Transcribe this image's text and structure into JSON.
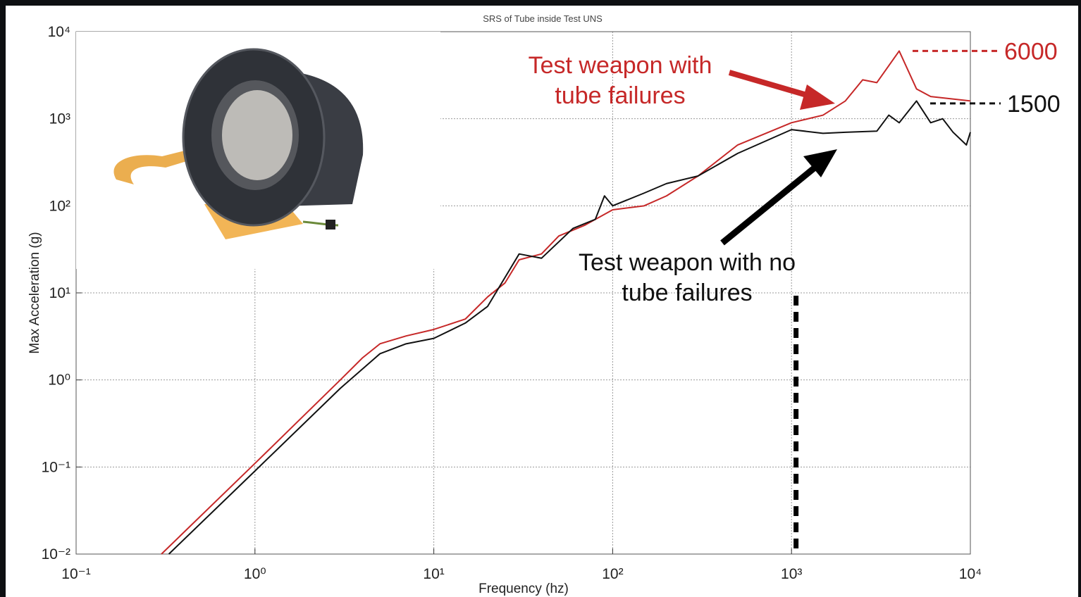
{
  "chart_data": {
    "type": "line",
    "title": "SRS of Tube inside Test UNS",
    "x_label": "Frequency (hz)",
    "y_label": "Max Acceleration (g)",
    "log_x": true,
    "log_y": true,
    "grid": true,
    "xlim": [
      0.1,
      10000
    ],
    "ylim": [
      0.01,
      10000
    ],
    "xticks": [
      {
        "value": 0.1,
        "label": "10⁻¹"
      },
      {
        "value": 1,
        "label": "10⁰"
      },
      {
        "value": 10,
        "label": "10¹"
      },
      {
        "value": 100,
        "label": "10²"
      },
      {
        "value": 1000,
        "label": "10³"
      },
      {
        "value": 10000,
        "label": "10⁴"
      }
    ],
    "yticks": [
      {
        "value": 0.01,
        "label": "10⁻²"
      },
      {
        "value": 0.1,
        "label": "10⁻¹"
      },
      {
        "value": 1,
        "label": "10⁰"
      },
      {
        "value": 10,
        "label": "10¹"
      },
      {
        "value": 100,
        "label": "10²"
      },
      {
        "value": 1000,
        "label": "10³"
      },
      {
        "value": 10000,
        "label": "10⁴"
      }
    ],
    "series": [
      {
        "name": "Test weapon with tube failures",
        "color": "#c62828",
        "x": [
          0.3,
          1,
          3,
          4,
          5,
          7,
          10,
          15,
          20,
          25,
          30,
          40,
          50,
          70,
          100,
          150,
          200,
          300,
          500,
          1000,
          1500,
          2000,
          2500,
          3000,
          4000,
          5000,
          6000,
          10000
        ],
        "values": [
          0.01,
          0.11,
          1.0,
          1.8,
          2.6,
          3.2,
          3.8,
          5,
          9,
          13,
          24,
          28,
          45,
          60,
          90,
          100,
          130,
          220,
          500,
          900,
          1100,
          1600,
          2800,
          2600,
          6000,
          2200,
          1800,
          1600
        ]
      },
      {
        "name": "Test weapon with no tube failures",
        "color": "#111111",
        "x": [
          0.33,
          1,
          3,
          5,
          7,
          10,
          15,
          20,
          30,
          40,
          60,
          80,
          90,
          100,
          150,
          200,
          300,
          500,
          1000,
          1500,
          2000,
          3000,
          3500,
          4000,
          5000,
          6000,
          7000,
          8000,
          9500,
          10000
        ],
        "values": [
          0.01,
          0.09,
          0.8,
          2.0,
          2.6,
          3.0,
          4.5,
          7,
          28,
          25,
          55,
          70,
          130,
          100,
          140,
          180,
          220,
          400,
          750,
          680,
          700,
          720,
          1100,
          900,
          1600,
          900,
          1000,
          700,
          500,
          700
        ]
      }
    ],
    "reference_lines": [
      {
        "value": 6000,
        "color": "#c62828"
      },
      {
        "value": 1500,
        "color": "#111111"
      }
    ],
    "vertical_line": {
      "value": 1060,
      "color": "#000000"
    }
  }
}
